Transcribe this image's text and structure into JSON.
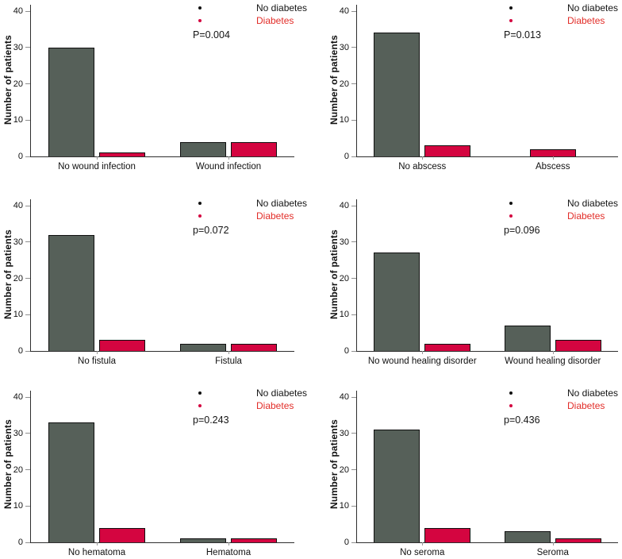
{
  "figure": {
    "ylabel": "Number of patients",
    "yticks": [
      0,
      10,
      20,
      30,
      40
    ],
    "legend": {
      "no_diabetes": "No diabetes",
      "diabetes": "Diabetes"
    },
    "colors": {
      "no_diabetes_bar": "#566059",
      "diabetes_bar": "#d40540",
      "diabetes_legend_text": "#e22d28",
      "axis": "#2e2e2e"
    }
  },
  "chart_data": [
    {
      "type": "bar",
      "title": "Wound infection",
      "p_value_label": "P=0.004",
      "categories": [
        "No wound infection",
        "Wound infection"
      ],
      "series": [
        {
          "name": "No diabetes",
          "values": [
            30,
            4
          ]
        },
        {
          "name": "Diabetes",
          "values": [
            1,
            4
          ]
        }
      ],
      "ylabel": "Number of patients",
      "ylim": [
        0,
        40
      ],
      "yticks": [
        0,
        10,
        20,
        30,
        40
      ],
      "legend_position": "top-right"
    },
    {
      "type": "bar",
      "title": "Abscess",
      "p_value_label": "P=0.013",
      "categories": [
        "No abscess",
        "Abscess"
      ],
      "series": [
        {
          "name": "No diabetes",
          "values": [
            34,
            0
          ]
        },
        {
          "name": "Diabetes",
          "values": [
            3,
            2
          ]
        }
      ],
      "ylabel": "Number of patients",
      "ylim": [
        0,
        40
      ],
      "yticks": [
        0,
        10,
        20,
        30,
        40
      ],
      "legend_position": "top-right"
    },
    {
      "type": "bar",
      "title": "Fistula",
      "p_value_label": "p=0.072",
      "categories": [
        "No fistula",
        "Fistula"
      ],
      "series": [
        {
          "name": "No diabetes",
          "values": [
            32,
            2
          ]
        },
        {
          "name": "Diabetes",
          "values": [
            3,
            2
          ]
        }
      ],
      "ylabel": "Number of patients",
      "ylim": [
        0,
        40
      ],
      "yticks": [
        0,
        10,
        20,
        30,
        40
      ],
      "legend_position": "top-right"
    },
    {
      "type": "bar",
      "title": "Wound healing disorder",
      "p_value_label": "p=0.096",
      "categories": [
        "No wound healing disorder",
        "Wound healing disorder"
      ],
      "series": [
        {
          "name": "No diabetes",
          "values": [
            27,
            7
          ]
        },
        {
          "name": "Diabetes",
          "values": [
            2,
            3
          ]
        }
      ],
      "ylabel": "Number of patients",
      "ylim": [
        0,
        40
      ],
      "yticks": [
        0,
        10,
        20,
        30,
        40
      ],
      "legend_position": "top-right"
    },
    {
      "type": "bar",
      "title": "Hematoma",
      "p_value_label": "p=0.243",
      "categories": [
        "No hematoma",
        "Hematoma"
      ],
      "series": [
        {
          "name": "No diabetes",
          "values": [
            33,
            1
          ]
        },
        {
          "name": "Diabetes",
          "values": [
            4,
            1
          ]
        }
      ],
      "ylabel": "Number of patients",
      "ylim": [
        0,
        40
      ],
      "yticks": [
        0,
        10,
        20,
        30,
        40
      ],
      "legend_position": "top-right"
    },
    {
      "type": "bar",
      "title": "Seroma",
      "p_value_label": "p=0.436",
      "categories": [
        "No seroma",
        "Seroma"
      ],
      "series": [
        {
          "name": "No diabetes",
          "values": [
            31,
            3
          ]
        },
        {
          "name": "Diabetes",
          "values": [
            4,
            1
          ]
        }
      ],
      "ylabel": "Number of patients",
      "ylim": [
        0,
        40
      ],
      "yticks": [
        0,
        10,
        20,
        30,
        40
      ],
      "legend_position": "top-right"
    }
  ]
}
